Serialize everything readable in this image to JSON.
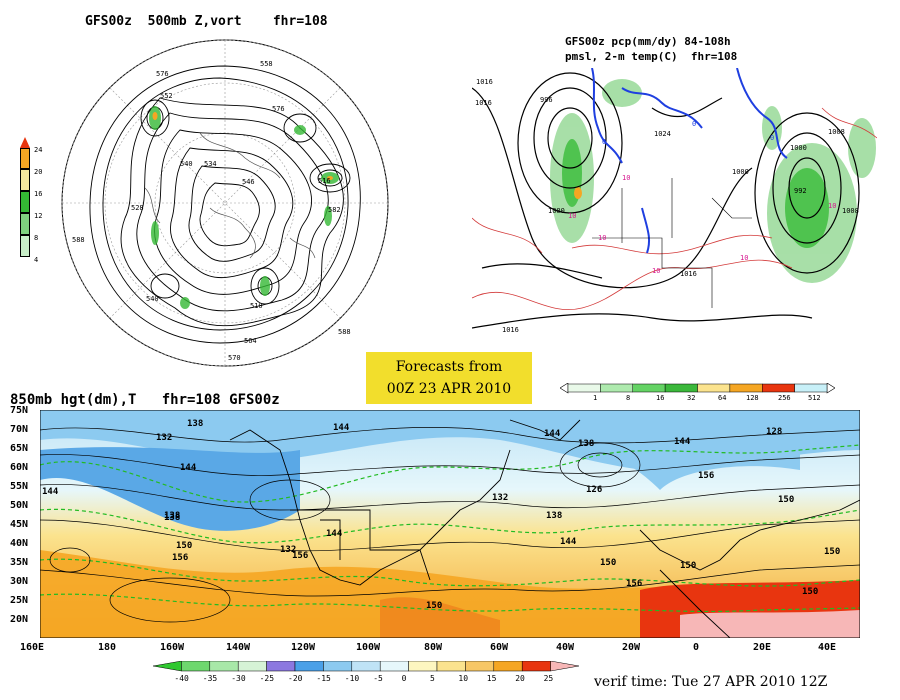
{
  "panels": {
    "top_left_title": "GFS00z  500mb Z,vort    fhr=108",
    "top_right_title_line1": "GFS00z pcp(mm/dy) 84-108h",
    "top_right_title_line2": "pmsl, 2-m temp(C)  fhr=108",
    "bottom_title": "850mb hgt(dm),T   fhr=108 GFS00z"
  },
  "forecast_box": {
    "line1": "Forecasts from",
    "line2": "00Z 23 APR 2010"
  },
  "verif_time": "verif time: Tue 27 APR 2010 12Z",
  "vort_colorbar": {
    "labels": [
      "24",
      "20",
      "16",
      "12",
      "8",
      "4"
    ],
    "colors": [
      "#e8350f",
      "#f5a623",
      "#f5e79e",
      "#34b834",
      "#7fd17f",
      "#c8eec8"
    ]
  },
  "pcp_colorbar": {
    "labels": [
      "1",
      "8",
      "16",
      "32",
      "64",
      "128",
      "256",
      "512"
    ],
    "colors": [
      "#e9f9e9",
      "#aeeaae",
      "#64d364",
      "#3bb83b",
      "#fbe38e",
      "#f5a623",
      "#e8350f",
      "#c8f0f8"
    ]
  },
  "temp_colorbar": {
    "labels": [
      "-40",
      "-35",
      "-30",
      "-25",
      "-20",
      "-15",
      "-10",
      "-5",
      "0",
      "5",
      "10",
      "15",
      "20",
      "25"
    ],
    "colors": [
      "#30c830",
      "#6ed86e",
      "#a8e8a8",
      "#d6f3d6",
      "#8c78e0",
      "#4aa0e8",
      "#8ccaf0",
      "#bfe3f6",
      "#e6f7fb",
      "#fdf6c0",
      "#fbe38e",
      "#f7c766",
      "#f5a623",
      "#e8350f",
      "#f7b7b7"
    ]
  },
  "lat_labels": [
    "75N",
    "70N",
    "65N",
    "60N",
    "55N",
    "50N",
    "45N",
    "40N",
    "35N",
    "30N",
    "25N",
    "20N"
  ],
  "lon_labels": [
    "160E",
    "180",
    "160W",
    "140W",
    "120W",
    "100W",
    "80W",
    "60W",
    "40W",
    "20W",
    "0",
    "20E",
    "40E"
  ],
  "hgt_labels_850": [
    "138",
    "132",
    "138",
    "144",
    "144",
    "138",
    "144",
    "128",
    "144",
    "132",
    "138",
    "126",
    "144",
    "150",
    "150",
    "156",
    "156",
    "150",
    "138",
    "132",
    "144",
    "150",
    "156",
    "150",
    "156",
    "150",
    "150",
    "144"
  ],
  "z500_labels": [
    "576",
    "558",
    "552",
    "540",
    "528",
    "534",
    "546",
    "564",
    "570",
    "576",
    "582",
    "588",
    "516",
    "510",
    "588",
    "540"
  ],
  "pmsl_labels": [
    "1016",
    "1016",
    "996",
    "1000",
    "1024",
    "1000",
    "1008",
    "1016",
    "1000",
    "992",
    "1008",
    "1016"
  ],
  "temp2m_labels": [
    "10",
    "10",
    "10",
    "10",
    "10",
    "10",
    "0",
    "0",
    "0"
  ],
  "colors": {
    "background": "#ffffff",
    "forecast_box": "#f2de2c",
    "contour": "#000000",
    "temp_contour": "#22bb22",
    "freezing_line": "#1f3fe0",
    "warm_line": "#d33a3a"
  }
}
